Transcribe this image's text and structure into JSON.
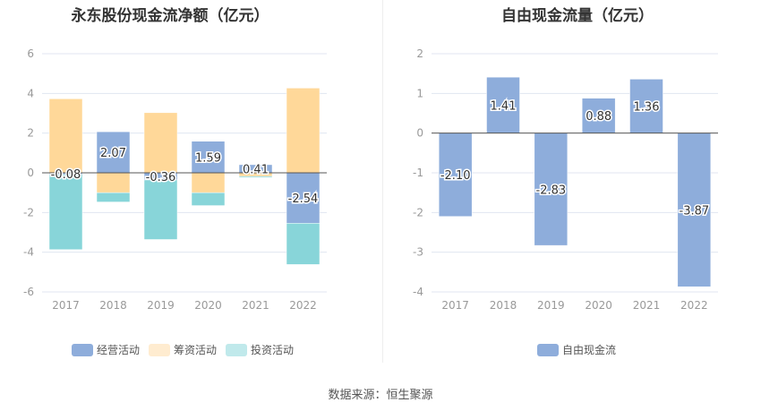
{
  "source": "数据来源：恒生聚源",
  "chart_data": [
    {
      "type": "bar",
      "stacked": true,
      "title": "永东股份现金流净额（亿元）",
      "categories": [
        "2017",
        "2018",
        "2019",
        "2020",
        "2021",
        "2022"
      ],
      "ylim": [
        -6,
        6
      ],
      "yticks": [
        -6,
        -4,
        -2,
        0,
        2,
        4,
        6
      ],
      "grid": true,
      "legend_position": "bottom",
      "series": [
        {
          "name": "经营活动",
          "color": "#8eaddb",
          "values": [
            -0.08,
            2.07,
            -0.36,
            1.59,
            0.41,
            -2.54
          ],
          "labels": [
            "-0.08",
            "2.07",
            "-0.36",
            "1.59",
            "0.41",
            "-2.54"
          ]
        },
        {
          "name": "筹资活动",
          "color": "#ffd899",
          "legend_color": "#ffecd0",
          "values": [
            3.73,
            -1.0,
            3.03,
            -1.0,
            -0.18,
            4.27
          ]
        },
        {
          "name": "投资活动",
          "color": "#88d5d9",
          "legend_color": "#c0e9eb",
          "values": [
            -3.79,
            -0.47,
            -3.0,
            -0.65,
            -0.06,
            -2.08
          ]
        }
      ]
    },
    {
      "type": "bar",
      "title": "自由现金流量（亿元）",
      "categories": [
        "2017",
        "2018",
        "2019",
        "2020",
        "2021",
        "2022"
      ],
      "ylim": [
        -4,
        2
      ],
      "yticks": [
        -4,
        -3,
        -2,
        -1,
        0,
        1,
        2
      ],
      "grid": true,
      "legend_position": "bottom",
      "series": [
        {
          "name": "自由现金流",
          "color": "#8eaddb",
          "values": [
            -2.1,
            1.41,
            -2.83,
            0.88,
            1.36,
            -3.87
          ],
          "labels": [
            "-2.10",
            "1.41",
            "-2.83",
            "0.88",
            "1.36",
            "-3.87"
          ]
        }
      ]
    }
  ]
}
